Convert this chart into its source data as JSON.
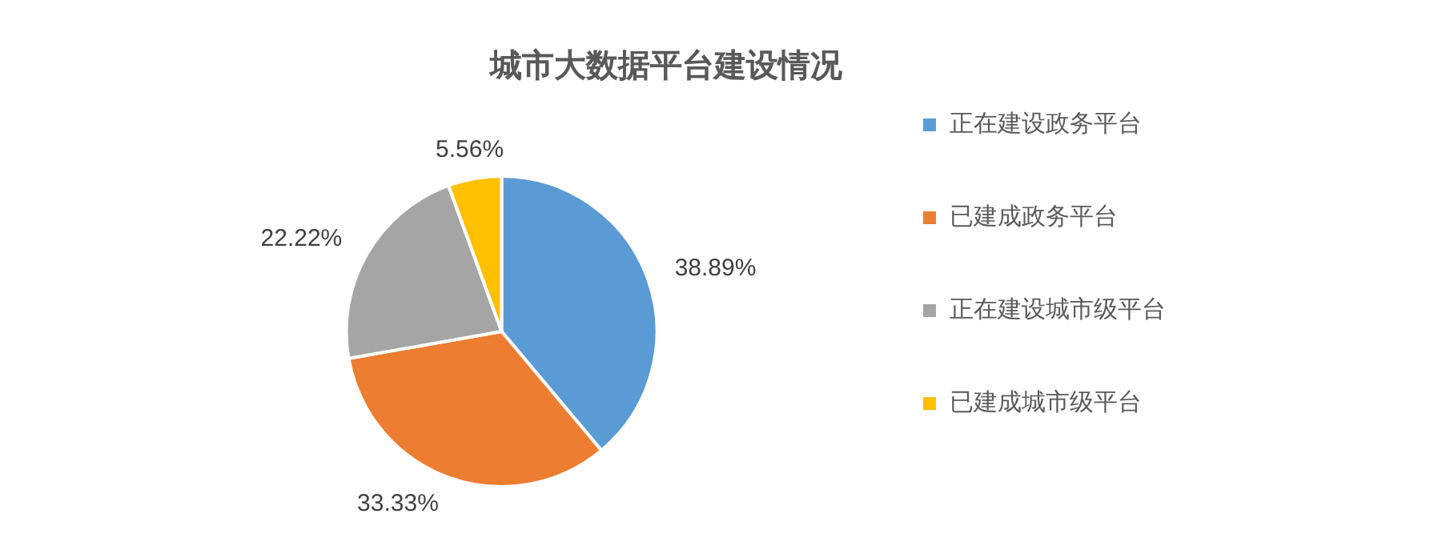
{
  "chart_data": {
    "type": "pie",
    "title": "城市大数据平台建设情况",
    "categories": [
      "正在建设政务平台",
      "已建成政务平台",
      "正在建设城市级平台",
      "已建成城市级平台"
    ],
    "values": [
      38.89,
      33.33,
      22.22,
      5.56
    ],
    "colors": [
      "#5b9bd5",
      "#ed7d31",
      "#a5a5a5",
      "#ffc000"
    ],
    "value_labels": [
      "38.89%",
      "33.33%",
      "22.22%",
      "5.56%"
    ],
    "legend": "right"
  }
}
